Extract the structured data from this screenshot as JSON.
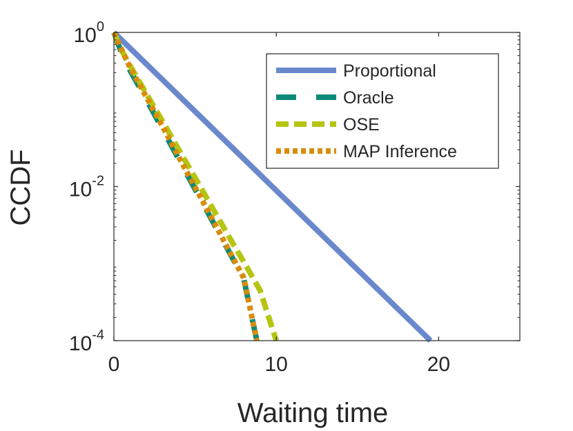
{
  "chart_data": {
    "type": "line",
    "title": "",
    "xlabel": "Waiting time",
    "ylabel": "CCDF",
    "xlim": [
      0,
      25
    ],
    "ylim": [
      0.0001,
      1
    ],
    "yscale": "log",
    "x_ticks": [
      0,
      10,
      20
    ],
    "x_tick_labels": [
      "0",
      "10",
      "20"
    ],
    "y_ticks": [
      1,
      0.01,
      0.0001
    ],
    "y_tick_labels": [
      {
        "base": "10",
        "exp": "0"
      },
      {
        "base": "10",
        "exp": "-2"
      },
      {
        "base": "10",
        "exp": "-4"
      }
    ],
    "grid": false,
    "legend_position": "top-right",
    "series": [
      {
        "name": "Proportional",
        "color": "#6a88cc",
        "style": "solid",
        "x": [
          0,
          19.5
        ],
        "y": [
          1,
          0.0001
        ]
      },
      {
        "name": "Oracle",
        "color": "#0c8a78",
        "style": "dashed",
        "x": [
          0,
          0.5,
          1,
          2,
          3,
          4,
          5,
          6,
          7,
          8,
          8.8
        ],
        "y": [
          1,
          0.52,
          0.32,
          0.135,
          0.055,
          0.0225,
          0.0092,
          0.0038,
          0.00155,
          0.00063,
          0.0001
        ]
      },
      {
        "name": "OSE",
        "color": "#b5c512",
        "style": "dashed",
        "x": [
          0,
          0.5,
          1,
          2,
          3,
          4,
          5,
          6,
          7,
          8,
          9,
          10
        ],
        "y": [
          1,
          0.57,
          0.37,
          0.16,
          0.07,
          0.03,
          0.013,
          0.0056,
          0.0024,
          0.00105,
          0.00045,
          0.0001
        ]
      },
      {
        "name": "MAP Inference",
        "color": "#d98c0c",
        "style": "dotted",
        "x": [
          0,
          0.5,
          1,
          2,
          3,
          4,
          5,
          6,
          7,
          8,
          8.8
        ],
        "y": [
          1,
          0.58,
          0.35,
          0.145,
          0.06,
          0.024,
          0.0098,
          0.004,
          0.0016,
          0.00065,
          0.0001
        ]
      }
    ]
  }
}
